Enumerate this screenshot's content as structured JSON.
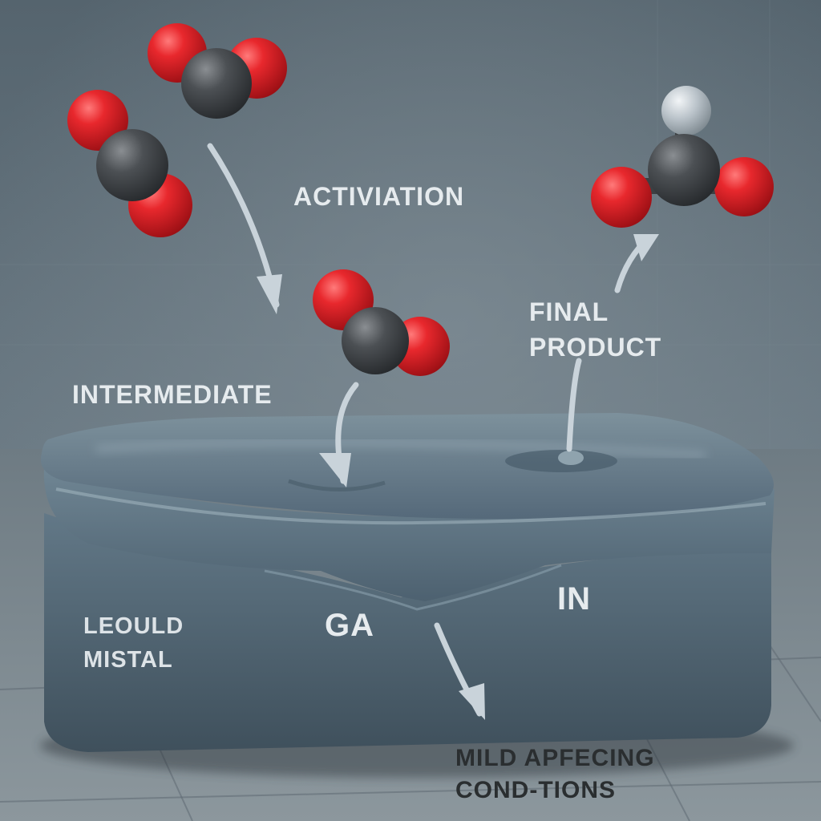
{
  "labels": {
    "activation": "ACTIVIATION",
    "intermediate": "INTERMEDIATE",
    "final_line1": "FINAL",
    "final_line2": "PRODUCT",
    "liquid_line1": "LEOULD",
    "liquid_line2": "MISTAL",
    "ga": "GA",
    "in": "IN",
    "conditions_line1": "MILD APFECING",
    "conditions_line2": "COND-TIONS"
  },
  "colors": {
    "oxygen": "#e0232a",
    "carbon": "#4a4d50",
    "hydrogen": "#c2c9d0",
    "metal": "#5b7381",
    "arrow": "#c9d3da",
    "label_light": "#e6ebee",
    "label_dark": "#2a2e30"
  },
  "icons": [
    "co2-molecule-icon",
    "carbonate-molecule-icon",
    "flow-arrow-icon"
  ]
}
